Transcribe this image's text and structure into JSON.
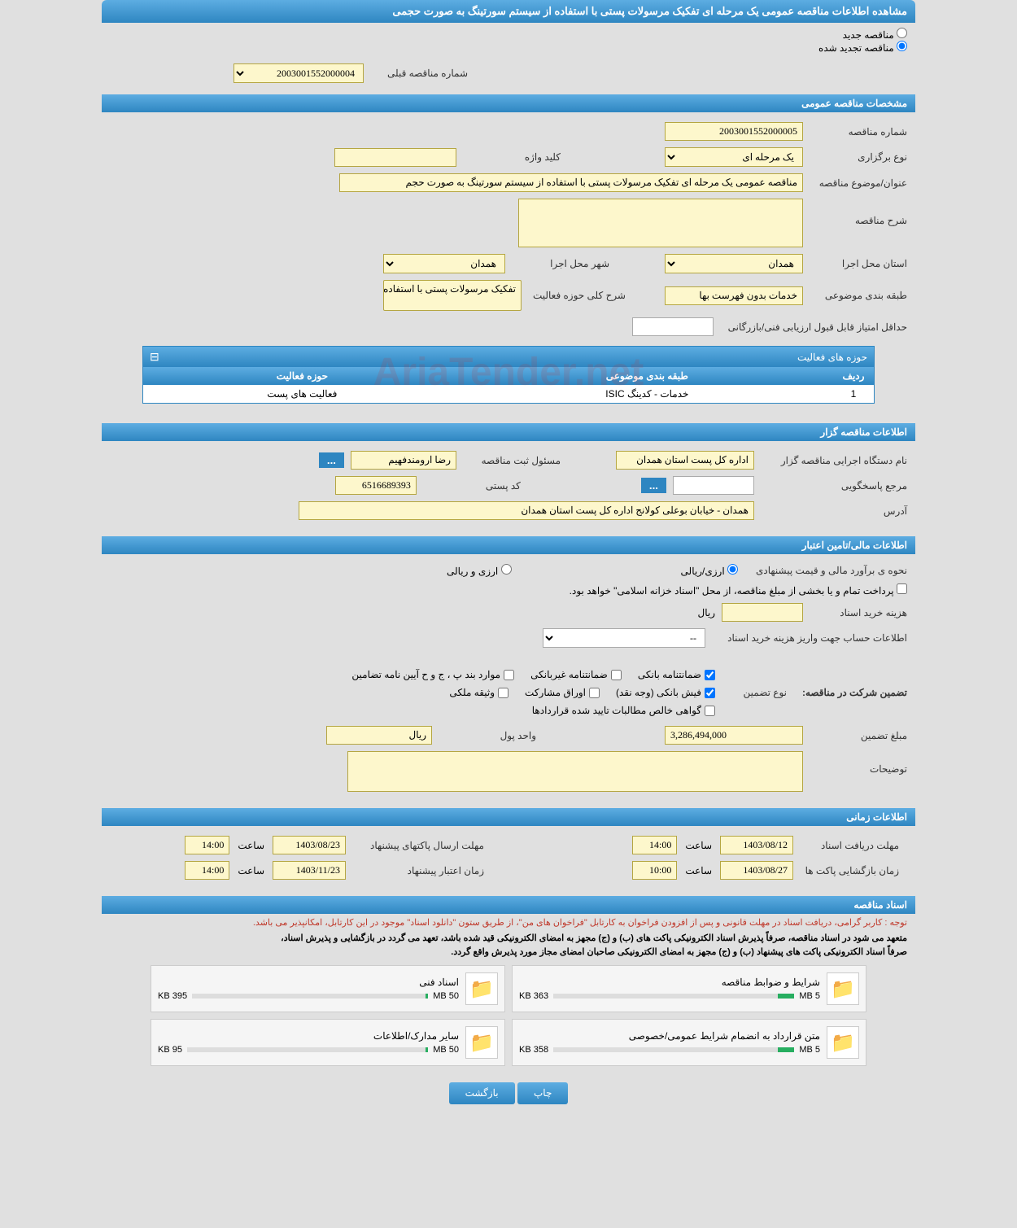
{
  "header": {
    "title": "مشاهده اطلاعات مناقصه عمومی یک مرحله ای تفکیک مرسولات پستی با استفاده از سیستم سورتینگ به صورت حجمی"
  },
  "radio_options": {
    "new_tender": "مناقصه جدید",
    "renewed_tender": "مناقصه تجدید شده"
  },
  "previous_tender": {
    "label": "شماره مناقصه قبلی",
    "value": "2003001552000004"
  },
  "sections": {
    "general": "مشخصات مناقصه عمومی",
    "organizer": "اطلاعات مناقصه گزار",
    "financial": "اطلاعات مالی/تامین اعتبار",
    "timing": "اطلاعات زمانی",
    "documents": "اسناد مناقصه"
  },
  "general": {
    "tender_no_label": "شماره مناقصه",
    "tender_no": "2003001552000005",
    "type_label": "نوع برگزاری",
    "type": "یک مرحله ای",
    "keyword_label": "کلید واژه",
    "keyword": "",
    "subject_label": "عنوان/موضوع مناقصه",
    "subject": "مناقصه عمومی یک مرحله ای تفکیک مرسولات پستی با استفاده از سیستم سورتینگ به صورت حجم",
    "description_label": "شرح مناقصه",
    "description": "",
    "province_label": "استان محل اجرا",
    "province": "همدان",
    "city_label": "شهر محل اجرا",
    "city": "همدان",
    "category_label": "طبقه بندی موضوعی",
    "category": "خدمات بدون فهرست بها",
    "activity_scope_label": "شرح کلی حوزه فعالیت",
    "activity_scope": "تفکیک مرسولات پستی با استفاده از سیستم",
    "min_score_label": "حداقل امتیاز قابل قبول ارزیابی فنی/بازرگانی",
    "min_score": ""
  },
  "activity_panel": {
    "title": "حوزه های فعالیت",
    "col_row": "ردیف",
    "col_category": "طبقه بندی موضوعی",
    "col_scope": "حوزه فعالیت",
    "rows": [
      {
        "num": "1",
        "category": "خدمات - کدینگ ISIC",
        "scope": "فعالیت های پست"
      }
    ]
  },
  "organizer": {
    "org_name_label": "نام دستگاه اجرایی مناقصه گزار",
    "org_name": "اداره کل پست استان همدان",
    "registrar_label": "مسئول ثبت مناقصه",
    "registrar": "رضا ارومندفهیم",
    "accountable_label": "مرجع پاسخگویی",
    "accountable": "",
    "postal_code_label": "کد پستی",
    "postal_code": "6516689393",
    "address_label": "آدرس",
    "address": "همدان - خیابان بوعلی کولانج اداره کل پست استان همدان"
  },
  "financial": {
    "estimate_label": "نحوه ی برآورد مالی و قیمت پیشنهادی",
    "rial_label": "ارزی/ریالی",
    "forex_label": "ارزی و ریالی",
    "payment_note": "پرداخت تمام و یا بخشی از مبلغ مناقصه، از محل \"اسناد خزانه اسلامی\" خواهد بود.",
    "doc_cost_label": "هزینه خرید اسناد",
    "doc_cost": "",
    "doc_cost_unit": "ریال",
    "account_label": "اطلاعات حساب جهت واریز هزینه خرید اسناد",
    "account_value": "--",
    "guarantee_title": "تضمین شرکت در مناقصه:",
    "guarantee_type_label": "نوع تضمین",
    "bank_guarantee": "ضمانتنامه بانکی",
    "non_bank_guarantee": "ضمانتنامه غیربانکی",
    "bylaw_items": "موارد بند پ ، ج و ح آیین نامه تضامین",
    "bank_receipt": "فیش بانکی (وجه نقد)",
    "securities": "اوراق مشارکت",
    "property_deed": "وثیقه ملکی",
    "contract_cert": "گواهی خالص مطالبات تایید شده قراردادها",
    "guarantee_amount_label": "مبلغ تضمین",
    "guarantee_amount": "3,286,494,000",
    "currency_label": "واحد پول",
    "currency": "ریال",
    "notes_label": "توضیحات",
    "notes": ""
  },
  "timing": {
    "receive_deadline_label": "مهلت دریافت اسناد",
    "receive_deadline_date": "1403/08/12",
    "receive_deadline_time_label": "ساعت",
    "receive_deadline_time": "14:00",
    "submit_deadline_label": "مهلت ارسال پاکتهای پیشنهاد",
    "submit_deadline_date": "1403/08/23",
    "submit_deadline_time": "14:00",
    "opening_label": "زمان بازگشایی پاکت ها",
    "opening_date": "1403/08/27",
    "opening_time": "10:00",
    "validity_label": "زمان اعتبار پیشنهاد",
    "validity_date": "1403/11/23",
    "validity_time": "14:00"
  },
  "documents": {
    "notice_red": "توجه : کاربر گرامی، دریافت اسناد در مهلت قانونی و پس از افزودن فراخوان به کارتابل \"فراخوان های من\"، از طریق ستون \"دانلود اسناد\" موجود در این کارتابل، امکانپذیر می باشد.",
    "notice1": "متعهد می شود در اسناد مناقصه، صرفاً پذیرش اسناد الکترونیکی پاکت های (ب) و (ج) مجهز به امضای الکترونیکی قید شده باشد، تعهد می گردد در بازگشایی و پذیرش اسناد،",
    "notice2": "صرفاً اسناد الکترونیکی پاکت های پیشنهاد (ب) و (ج) مجهز به امضای الکترونیکی صاحبان امضای مجاز مورد پذیرش واقع گردد.",
    "cards": [
      {
        "title": "شرایط و ضوابط مناقصه",
        "size": "363 KB",
        "max": "5 MB",
        "fill": 7
      },
      {
        "title": "اسناد فنی",
        "size": "395 KB",
        "max": "50 MB",
        "fill": 1
      },
      {
        "title": "متن قرارداد به انضمام شرایط عمومی/خصوصی",
        "size": "358 KB",
        "max": "5 MB",
        "fill": 7
      },
      {
        "title": "سایر مدارک/اطلاعات",
        "size": "95 KB",
        "max": "50 MB",
        "fill": 1
      }
    ]
  },
  "footer": {
    "print": "چاپ",
    "back": "بازگشت"
  },
  "watermark": "AriaTender.net"
}
